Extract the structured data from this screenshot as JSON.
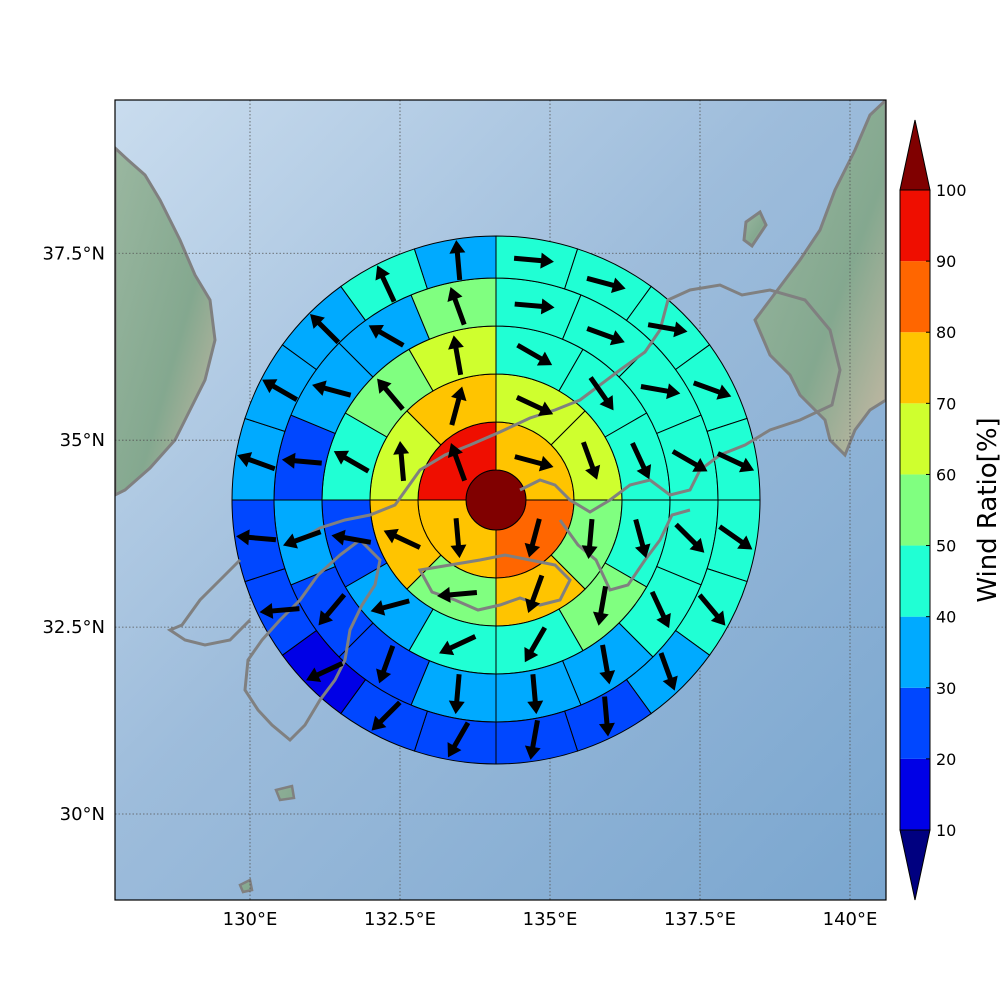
{
  "map": {
    "lon_range": [
      127.75,
      140.6
    ],
    "lat_range": [
      28.85,
      39.55
    ],
    "xticks": [
      {
        "value": 130,
        "label": "130°E"
      },
      {
        "value": 132.5,
        "label": "132.5°E"
      },
      {
        "value": 135,
        "label": "135°E"
      },
      {
        "value": 137.5,
        "label": "137.5°E"
      },
      {
        "value": 140,
        "label": "140°E"
      }
    ],
    "yticks": [
      {
        "value": 37.5,
        "label": "37.5°N"
      },
      {
        "value": 35,
        "label": "35°N"
      },
      {
        "value": 32.5,
        "label": "32.5°N"
      },
      {
        "value": 30,
        "label": "30°N"
      }
    ],
    "ocean_color": "#8fb3d6",
    "land_color": "#86ab93",
    "coastline_color": "#808080"
  },
  "chart_data": {
    "type": "heatmap",
    "layout": "polar grid of sectors with wind direction arrows",
    "center": {
      "lon": 134.1,
      "lat": 34.2
    },
    "ring_radii_deg": [
      0.5,
      1.3,
      2.1,
      2.9,
      3.7,
      4.4
    ],
    "sectors": [
      1,
      4,
      8,
      12,
      16,
      20
    ],
    "colorbar": {
      "label": "Wind Ratio[%]",
      "ticks": [
        10,
        20,
        30,
        40,
        50,
        60,
        70,
        80,
        90,
        100
      ],
      "extend": "both",
      "colors": [
        "#000080",
        "#0000e6",
        "#0047ff",
        "#00aaff",
        "#20ffd4",
        "#80ff80",
        "#cfff2e",
        "#ffc400",
        "#ff6600",
        "#ef0e00",
        "#800000"
      ]
    },
    "ring_values": [
      [
        100
      ],
      [
        70,
        80,
        70,
        90
      ],
      [
        60,
        60,
        50,
        70,
        50,
        70,
        60,
        70
      ],
      [
        40,
        40,
        40,
        40,
        50,
        40,
        40,
        30,
        20,
        40,
        50,
        60
      ],
      [
        40,
        40,
        40,
        40,
        40,
        40,
        30,
        30,
        30,
        20,
        20,
        30,
        20,
        30,
        30,
        50
      ],
      [
        40,
        40,
        40,
        40,
        40,
        40,
        40,
        30,
        20,
        20,
        20,
        20,
        10,
        20,
        20,
        30,
        30,
        30,
        40,
        30
      ]
    ],
    "wind_direction_deg": [
      [],
      [
        105,
        195,
        175,
        340
      ],
      [
        115,
        160,
        185,
        200,
        265,
        295,
        355,
        15
      ],
      [
        120,
        145,
        155,
        165,
        190,
        210,
        245,
        255,
        280,
        300,
        320,
        350
      ],
      [
        95,
        110,
        100,
        120,
        135,
        155,
        170,
        175,
        185,
        200,
        220,
        250,
        275,
        285,
        300,
        340
      ],
      [
        95,
        105,
        100,
        110,
        115,
        125,
        140,
        160,
        175,
        190,
        210,
        225,
        245,
        265,
        275,
        290,
        300,
        315,
        335,
        355
      ]
    ]
  }
}
